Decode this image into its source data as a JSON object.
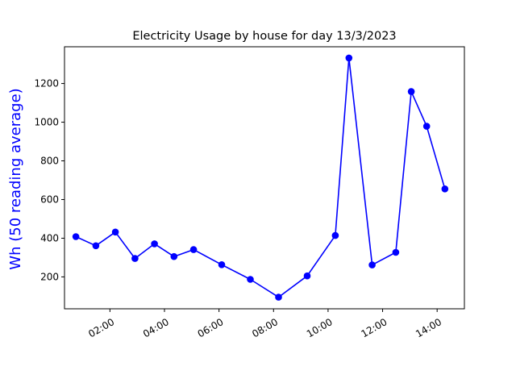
{
  "chart_data": {
    "type": "line",
    "title": "Electricity Usage by house for day 13/3/2023",
    "xlabel": "",
    "ylabel": "Wh (50 reading average)",
    "ylabel_color": "#0000ff",
    "x_tick_labels": [
      "02:00",
      "04:00",
      "06:00",
      "08:00",
      "10:00",
      "12:00",
      "14:00"
    ],
    "y_tick_labels": [
      "200",
      "400",
      "600",
      "800",
      "1000",
      "1200"
    ],
    "y_ticks": [
      200,
      400,
      600,
      800,
      1000,
      1200
    ],
    "xlim": [
      "00:20",
      "15:00"
    ],
    "ylim": [
      35,
      1390
    ],
    "grid": false,
    "series": [
      {
        "color": "#0000ff",
        "marker": "circle",
        "points": [
          {
            "x": "00:45",
            "y": 408
          },
          {
            "x": "01:29",
            "y": 361
          },
          {
            "x": "02:12",
            "y": 432
          },
          {
            "x": "02:55",
            "y": 295
          },
          {
            "x": "03:38",
            "y": 371
          },
          {
            "x": "04:21",
            "y": 305
          },
          {
            "x": "05:04",
            "y": 341
          },
          {
            "x": "06:06",
            "y": 263
          },
          {
            "x": "07:09",
            "y": 187
          },
          {
            "x": "08:11",
            "y": 95
          },
          {
            "x": "09:14",
            "y": 205
          },
          {
            "x": "10:16",
            "y": 414
          },
          {
            "x": "10:46",
            "y": 1332
          },
          {
            "x": "11:37",
            "y": 262
          },
          {
            "x": "12:29",
            "y": 327
          },
          {
            "x": "13:03",
            "y": 1158
          },
          {
            "x": "13:37",
            "y": 979
          },
          {
            "x": "14:17",
            "y": 655
          }
        ]
      }
    ]
  }
}
